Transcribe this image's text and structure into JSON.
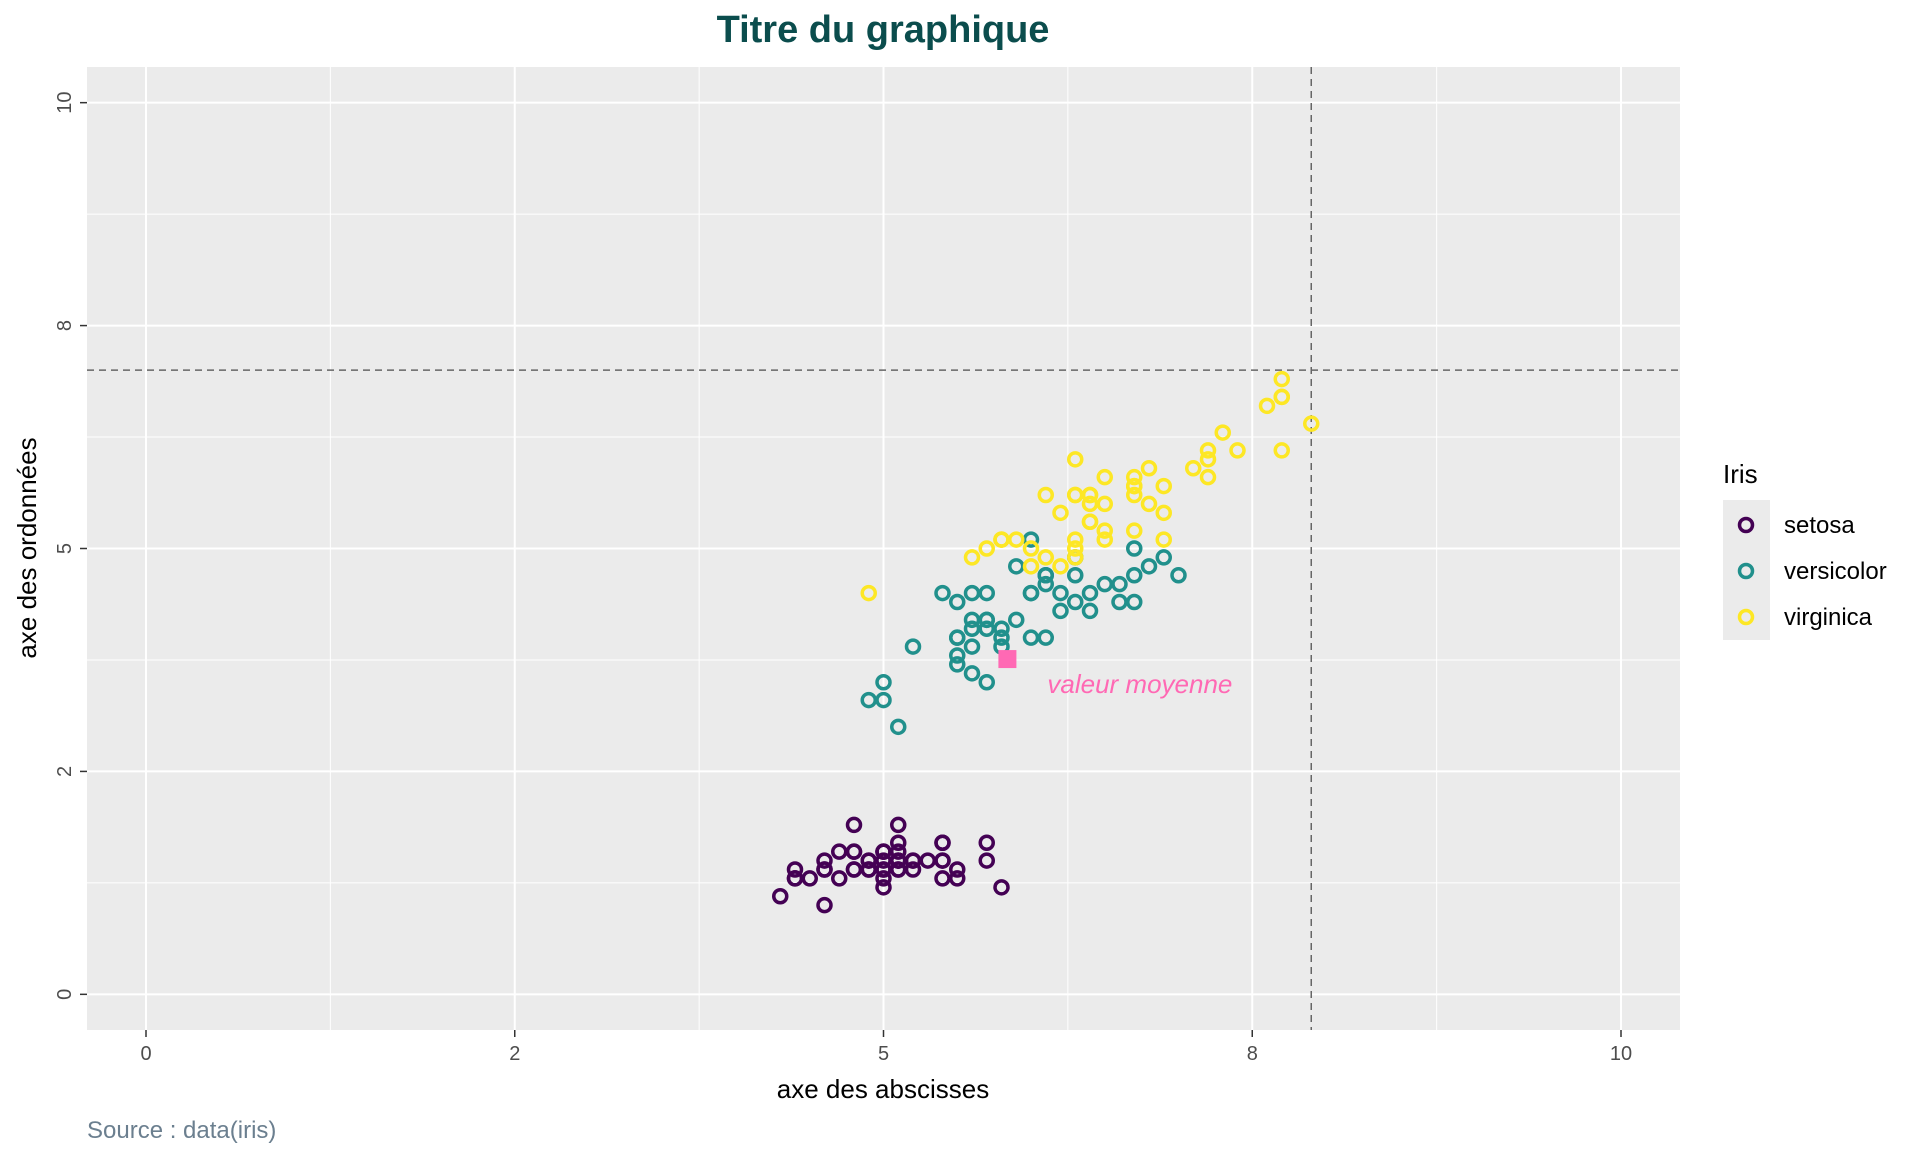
{
  "chart_data": {
    "type": "scatter",
    "title": "Titre du graphique",
    "xlabel": "axe des abscisses",
    "ylabel": "axe des ordonnées",
    "caption": "Source : data(iris)",
    "xlim": [
      -0.4,
      10.4
    ],
    "ylim": [
      -0.4,
      10.4
    ],
    "x_ticks": [
      0,
      2.5,
      5,
      7.5,
      10
    ],
    "x_tick_labels": [
      "0",
      "2",
      "5",
      "8",
      "10"
    ],
    "y_ticks": [
      0,
      2.5,
      5,
      7.5,
      10
    ],
    "y_tick_labels": [
      "0",
      "2",
      "5",
      "8",
      "10"
    ],
    "grid": true,
    "background": "#ebebeb",
    "legend": {
      "title": "Iris",
      "position": "right"
    },
    "hline": 7,
    "vline": 7.9,
    "mean_point": {
      "x": 5.84,
      "y": 3.76,
      "label": "valeur moyenne",
      "color": "#ff69b4"
    },
    "series": [
      {
        "name": "setosa",
        "color": "#440154",
        "points": [
          [
            5.1,
            1.4
          ],
          [
            4.9,
            1.4
          ],
          [
            4.7,
            1.3
          ],
          [
            4.6,
            1.5
          ],
          [
            5.0,
            1.4
          ],
          [
            5.4,
            1.7
          ],
          [
            4.6,
            1.4
          ],
          [
            5.0,
            1.5
          ],
          [
            4.4,
            1.4
          ],
          [
            4.9,
            1.5
          ],
          [
            5.4,
            1.5
          ],
          [
            4.8,
            1.6
          ],
          [
            4.8,
            1.4
          ],
          [
            4.3,
            1.1
          ],
          [
            5.8,
            1.2
          ],
          [
            5.7,
            1.5
          ],
          [
            5.4,
            1.3
          ],
          [
            5.1,
            1.4
          ],
          [
            5.7,
            1.7
          ],
          [
            5.1,
            1.5
          ],
          [
            5.4,
            1.7
          ],
          [
            5.1,
            1.5
          ],
          [
            4.6,
            1.0
          ],
          [
            5.1,
            1.7
          ],
          [
            4.8,
            1.9
          ],
          [
            5.0,
            1.6
          ],
          [
            5.0,
            1.6
          ],
          [
            5.2,
            1.5
          ],
          [
            5.2,
            1.4
          ],
          [
            4.7,
            1.6
          ],
          [
            4.8,
            1.6
          ],
          [
            5.4,
            1.5
          ],
          [
            5.2,
            1.5
          ],
          [
            5.5,
            1.4
          ],
          [
            4.9,
            1.5
          ],
          [
            5.0,
            1.2
          ],
          [
            5.5,
            1.3
          ],
          [
            4.9,
            1.4
          ],
          [
            4.4,
            1.3
          ],
          [
            5.1,
            1.5
          ],
          [
            5.0,
            1.3
          ],
          [
            4.5,
            1.3
          ],
          [
            4.4,
            1.3
          ],
          [
            5.0,
            1.6
          ],
          [
            5.1,
            1.9
          ],
          [
            4.8,
            1.4
          ],
          [
            5.1,
            1.6
          ],
          [
            4.6,
            1.4
          ],
          [
            5.3,
            1.5
          ],
          [
            5.0,
            1.4
          ]
        ]
      },
      {
        "name": "versicolor",
        "color": "#21908c",
        "points": [
          [
            7.0,
            4.7
          ],
          [
            6.4,
            4.5
          ],
          [
            6.9,
            4.9
          ],
          [
            5.5,
            4.0
          ],
          [
            6.5,
            4.6
          ],
          [
            5.7,
            4.5
          ],
          [
            6.3,
            4.7
          ],
          [
            4.9,
            3.3
          ],
          [
            6.6,
            4.6
          ],
          [
            5.2,
            3.9
          ],
          [
            5.0,
            3.5
          ],
          [
            5.9,
            4.2
          ],
          [
            6.0,
            4.0
          ],
          [
            6.1,
            4.7
          ],
          [
            5.6,
            3.6
          ],
          [
            6.7,
            4.4
          ],
          [
            5.6,
            4.5
          ],
          [
            5.8,
            4.1
          ],
          [
            6.2,
            4.5
          ],
          [
            5.6,
            3.9
          ],
          [
            5.9,
            4.8
          ],
          [
            6.1,
            4.0
          ],
          [
            6.3,
            4.9
          ],
          [
            6.1,
            4.7
          ],
          [
            6.4,
            4.3
          ],
          [
            6.6,
            4.4
          ],
          [
            6.8,
            4.8
          ],
          [
            6.7,
            5.0
          ],
          [
            6.0,
            4.5
          ],
          [
            5.7,
            3.5
          ],
          [
            5.5,
            3.8
          ],
          [
            5.5,
            3.7
          ],
          [
            5.8,
            3.9
          ],
          [
            6.0,
            5.1
          ],
          [
            5.4,
            4.5
          ],
          [
            6.0,
            4.5
          ],
          [
            6.7,
            4.7
          ],
          [
            6.3,
            4.4
          ],
          [
            5.6,
            4.1
          ],
          [
            5.5,
            4.0
          ],
          [
            5.5,
            4.4
          ],
          [
            6.1,
            4.6
          ],
          [
            5.8,
            4.0
          ],
          [
            5.0,
            3.3
          ],
          [
            5.6,
            4.2
          ],
          [
            5.7,
            4.2
          ],
          [
            5.7,
            4.2
          ],
          [
            6.2,
            4.3
          ],
          [
            5.1,
            3.0
          ],
          [
            5.7,
            4.1
          ]
        ]
      },
      {
        "name": "virginica",
        "color": "#fde725",
        "points": [
          [
            6.3,
            6.0
          ],
          [
            5.8,
            5.1
          ],
          [
            7.1,
            5.9
          ],
          [
            6.3,
            5.6
          ],
          [
            6.5,
            5.8
          ],
          [
            7.6,
            6.6
          ],
          [
            4.9,
            4.5
          ],
          [
            7.3,
            6.3
          ],
          [
            6.7,
            5.8
          ],
          [
            7.2,
            6.1
          ],
          [
            6.5,
            5.1
          ],
          [
            6.4,
            5.3
          ],
          [
            6.8,
            5.5
          ],
          [
            5.7,
            5.0
          ],
          [
            5.8,
            5.1
          ],
          [
            6.4,
            5.3
          ],
          [
            6.5,
            5.5
          ],
          [
            7.7,
            6.7
          ],
          [
            7.7,
            6.9
          ],
          [
            6.0,
            5.0
          ],
          [
            6.9,
            5.7
          ],
          [
            5.6,
            4.9
          ],
          [
            7.7,
            6.7
          ],
          [
            6.3,
            4.9
          ],
          [
            6.7,
            5.7
          ],
          [
            7.2,
            6.0
          ],
          [
            6.2,
            4.8
          ],
          [
            6.1,
            4.9
          ],
          [
            6.4,
            5.6
          ],
          [
            7.2,
            5.8
          ],
          [
            7.4,
            6.1
          ],
          [
            7.9,
            6.4
          ],
          [
            6.4,
            5.6
          ],
          [
            6.3,
            5.1
          ],
          [
            6.1,
            5.6
          ],
          [
            7.7,
            6.1
          ],
          [
            6.3,
            5.6
          ],
          [
            6.4,
            5.5
          ],
          [
            6.0,
            4.8
          ],
          [
            6.9,
            5.4
          ],
          [
            6.7,
            5.6
          ],
          [
            6.9,
            5.1
          ],
          [
            5.8,
            5.1
          ],
          [
            6.8,
            5.9
          ],
          [
            6.7,
            5.7
          ],
          [
            6.7,
            5.2
          ],
          [
            6.3,
            5.0
          ],
          [
            6.5,
            5.2
          ],
          [
            6.2,
            5.4
          ],
          [
            5.9,
            5.1
          ]
        ]
      }
    ]
  }
}
